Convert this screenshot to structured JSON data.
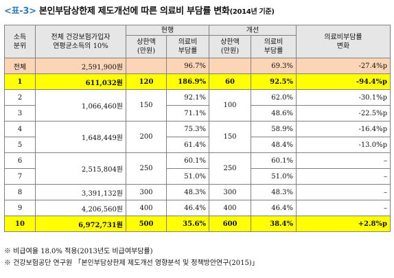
{
  "title": {
    "prefix": "<표-3>",
    "main": " 본인부담상한제 제도개선에 따른 의료비 부담률 변화",
    "year_note": "(2014년 기준)"
  },
  "header": {
    "group_current": "현행",
    "group_improved": "개선",
    "decile": "소득\n분위",
    "income": "전체 건강보험가입자\n연평균소득의 10%",
    "cap": "상한액\n(만원)",
    "burden": "의료비\n부담률",
    "change": "의료비부담률\n변화"
  },
  "rows": [
    {
      "decile": "전체",
      "income": "2,591,900원",
      "cur_cap": "",
      "cur_burden": "96.7%",
      "new_cap": "",
      "new_burden": "69.3%",
      "change": "-27.4%p"
    },
    {
      "decile": "1",
      "income": "611,032원",
      "cur_cap": "120",
      "cur_burden": "186.9%",
      "new_cap": "60",
      "new_burden": "92.5%",
      "change": "-94.4%p"
    },
    {
      "decile": "2",
      "income": "1,066,460원",
      "cur_cap": "150",
      "cur_burden": "92.1%",
      "new_cap": "100",
      "new_burden": "62.0%",
      "change": "-30.1%p"
    },
    {
      "decile": "3",
      "income": "",
      "cur_cap": "",
      "cur_burden": "71.1%",
      "new_cap": "",
      "new_burden": "48.6%",
      "change": "-22.5%p"
    },
    {
      "decile": "4",
      "income": "1,648,449원",
      "cur_cap": "200",
      "cur_burden": "75.3%",
      "new_cap": "150",
      "new_burden": "58.9%",
      "change": "-16.4%p"
    },
    {
      "decile": "5",
      "income": "",
      "cur_cap": "",
      "cur_burden": "61.4%",
      "new_cap": "",
      "new_burden": "48.4%",
      "change": "-13.0%p"
    },
    {
      "decile": "6",
      "income": "2,515,804원",
      "cur_cap": "250",
      "cur_burden": "60.1%",
      "new_cap": "250",
      "new_burden": "60.1%",
      "change": "–"
    },
    {
      "decile": "7",
      "income": "",
      "cur_cap": "",
      "cur_burden": "51.0%",
      "new_cap": "",
      "new_burden": "51.0%",
      "change": "–"
    },
    {
      "decile": "8",
      "income": "3,391,132원",
      "cur_cap": "300",
      "cur_burden": "48.3%",
      "new_cap": "300",
      "new_burden": "48.3%",
      "change": "–"
    },
    {
      "decile": "9",
      "income": "4,206,560원",
      "cur_cap": "400",
      "cur_burden": "46.4%",
      "new_cap": "400",
      "new_burden": "46.4%",
      "change": "–"
    },
    {
      "decile": "10",
      "income": "6,972,731원",
      "cur_cap": "500",
      "cur_burden": "35.6%",
      "new_cap": "600",
      "new_burden": "38.4%",
      "change": "+2.8%p"
    }
  ],
  "notes": [
    "※ 비급여율 18.0% 적용(2013년도 비급여부담률)",
    "※ 건강보험공단 연구원 「본인부담상한제 제도개선 영향분석 및 정책방안연구(2015)」"
  ],
  "colors": {
    "header_bg": "#e6e6e6",
    "total_bg": "#fbd5b5",
    "highlight_bg": "#ffff00",
    "title_prefix": "#2f7ab8"
  }
}
